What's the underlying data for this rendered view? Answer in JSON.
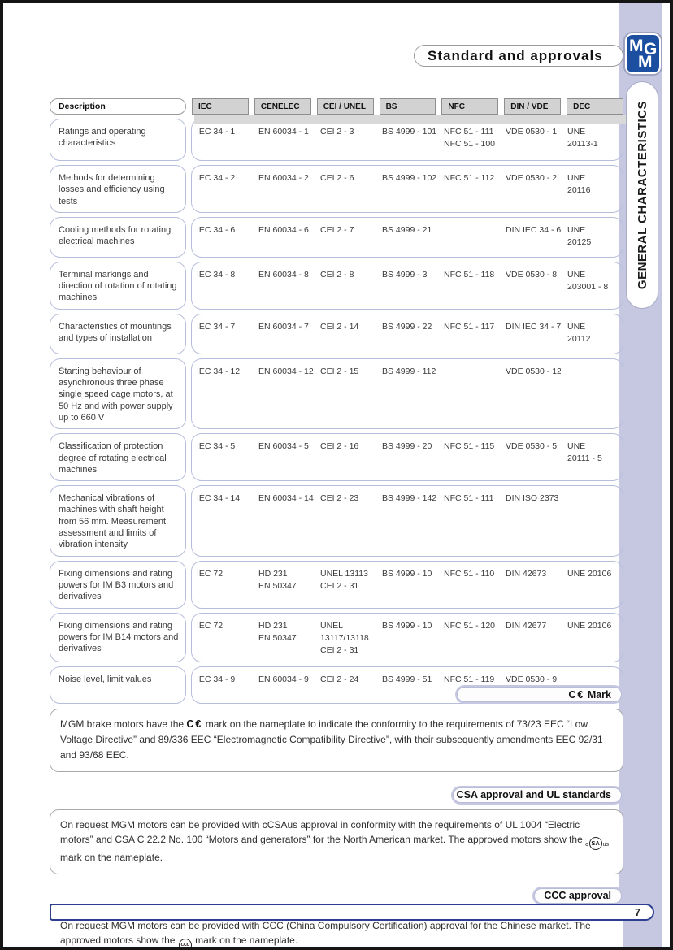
{
  "page": {
    "title": "Standard and approvals",
    "side_tab": "GENERAL CHARACTERISTICS",
    "page_number": "7",
    "logo": {
      "letter1": "M",
      "letter2": "G",
      "letter3": "M"
    },
    "colors": {
      "lavender": "#c6c8e2",
      "navy": "#2b3f8e",
      "logo_blue": "#1d4fa1",
      "header_gray": "#d2d2d2",
      "row_border": "#b7bedb"
    }
  },
  "table": {
    "headers": [
      "Description",
      "IEC",
      "CENELEC",
      "CEI / UNEL",
      "BS",
      "NFC",
      "DIN / VDE",
      "DEC"
    ],
    "rows": [
      {
        "description": "Ratings and operating characteristics",
        "cells": [
          [
            "IEC 34 - 1"
          ],
          [
            "EN 60034 - 1"
          ],
          [
            "CEI 2 - 3"
          ],
          [
            "BS 4999 - 101"
          ],
          [
            "NFC 51 - 111",
            "NFC 51 - 100"
          ],
          [
            "VDE 0530 - 1"
          ],
          [
            "UNE",
            "20113-1"
          ]
        ]
      },
      {
        "description": "Methods for determining losses and efficiency using tests",
        "cells": [
          [
            "IEC 34 - 2"
          ],
          [
            "EN 60034 - 2"
          ],
          [
            "CEI 2 - 6"
          ],
          [
            "BS 4999 - 102"
          ],
          [
            "NFC 51 - 112"
          ],
          [
            "VDE 0530 - 2"
          ],
          [
            "UNE",
            "20116"
          ]
        ]
      },
      {
        "description": "Cooling methods for rotating electrical machines",
        "cells": [
          [
            "IEC 34 - 6"
          ],
          [
            "EN 60034 - 6"
          ],
          [
            "CEI 2 - 7"
          ],
          [
            "BS 4999 - 21"
          ],
          [],
          [
            "DIN IEC 34 - 6"
          ],
          [
            "UNE",
            "20125"
          ]
        ]
      },
      {
        "description": "Terminal markings and direction of rotation of rotating machines",
        "cells": [
          [
            "IEC 34 - 8"
          ],
          [
            "EN 60034 - 8"
          ],
          [
            "CEI 2 - 8"
          ],
          [
            "BS 4999 - 3"
          ],
          [
            "NFC 51 - 118"
          ],
          [
            "VDE 0530 - 8"
          ],
          [
            "UNE",
            "203001 - 8"
          ]
        ]
      },
      {
        "description": "Characteristics of mountings and types of installation",
        "cells": [
          [
            "IEC 34 - 7"
          ],
          [
            "EN 60034 - 7"
          ],
          [
            "CEI 2 - 14"
          ],
          [
            "BS 4999 - 22"
          ],
          [
            "NFC 51 - 117"
          ],
          [
            "DIN IEC 34 - 7"
          ],
          [
            "UNE",
            "20112"
          ]
        ]
      },
      {
        "description": "Starting behaviour of asynchronous three phase single speed cage motors, at 50 Hz and with power supply up to 660 V",
        "cells": [
          [
            "IEC 34 - 12"
          ],
          [
            "EN 60034 - 12"
          ],
          [
            "CEI 2 - 15"
          ],
          [
            "BS 4999 - 112"
          ],
          [],
          [
            "VDE 0530 - 12"
          ],
          []
        ]
      },
      {
        "description": "Classification of protection degree of rotating electrical machines",
        "cells": [
          [
            "IEC 34 - 5"
          ],
          [
            "EN 60034 - 5"
          ],
          [
            "CEI 2 - 16"
          ],
          [
            "BS 4999 - 20"
          ],
          [
            "NFC 51 - 115"
          ],
          [
            "VDE 0530 - 5"
          ],
          [
            "UNE",
            "20111 - 5"
          ]
        ]
      },
      {
        "description": "Mechanical vibrations of machines with shaft height from 56 mm. Measurement, assessment and limits of vibration intensity",
        "cells": [
          [
            "IEC 34 - 14"
          ],
          [
            "EN 60034 - 14"
          ],
          [
            "CEI 2 - 23"
          ],
          [
            "BS 4999 - 142"
          ],
          [
            "NFC 51 - 111"
          ],
          [
            "DIN ISO 2373"
          ],
          []
        ]
      },
      {
        "description": "Fixing dimensions and rating powers for IM B3 motors and derivatives",
        "cells": [
          [
            "IEC 72"
          ],
          [
            "HD 231",
            "EN 50347"
          ],
          [
            "UNEL 13113",
            "CEI 2 - 31"
          ],
          [
            "BS 4999 - 10"
          ],
          [
            "NFC 51 - 110"
          ],
          [
            "DIN 42673"
          ],
          [
            "UNE 20106"
          ]
        ]
      },
      {
        "description": "Fixing dimensions and rating powers for IM B14 motors and derivatives",
        "cells": [
          [
            "IEC 72"
          ],
          [
            "HD 231",
            "EN 50347"
          ],
          [
            "UNEL",
            "13117/13118",
            "CEI 2 - 31"
          ],
          [
            "BS 4999 - 10"
          ],
          [
            "NFC 51 - 120"
          ],
          [
            "DIN 42677"
          ],
          [
            "UNE 20106"
          ]
        ]
      },
      {
        "description": "Noise level, limit values",
        "cells": [
          [
            "IEC 34 - 9"
          ],
          [
            "EN 60034 - 9"
          ],
          [
            "CEI 2 - 24"
          ],
          [
            "BS 4999 - 51"
          ],
          [
            "NFC 51 - 119"
          ],
          [
            "VDE 0530 - 9"
          ],
          []
        ]
      }
    ]
  },
  "sections": {
    "ce": {
      "title_mark": "C€",
      "title_label": "Mark",
      "body_pre": "MGM brake motors have the",
      "body_mark": "C€",
      "body_post": "mark on the nameplate to indicate the conformity to the requirements of 73/23 EEC “Low Voltage Directive” and 89/336 EEC “Electromagnetic Compatibility Directive”, with their subsequently amendments EEC 92/31 and 93/68 EEC."
    },
    "csa": {
      "title": "CSA approval and UL standards",
      "body_pre": "On request MGM motors can be provided with cCSAus approval in conformity with the requirements of UL 1004 “Electric motors” and CSA C 22.2 No. 100 “Motors and generators” for the North American market. The approved motors show the",
      "mark_prefix": "c",
      "mark_core": "SA",
      "mark_suffix": "us",
      "body_post": "mark on the nameplate."
    },
    "ccc": {
      "title": "CCC approval",
      "body_pre": "On request MGM motors can be provided with CCC (China Compulsory Certification) approval for the Chinese market. The approved motors show the",
      "mark_core": "CCC",
      "body_post": "mark on the nameplate."
    }
  }
}
